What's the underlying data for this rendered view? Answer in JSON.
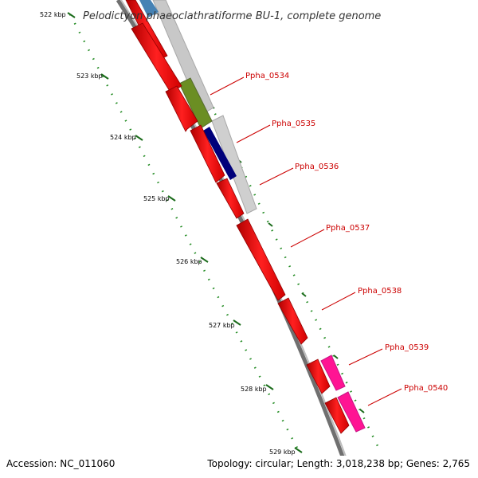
{
  "title": "Pelodictyon phaeoclathratiforme BU-1, complete genome",
  "scale_labels": [
    "522 kbp",
    "523 kbp",
    "524 kbp",
    "525 kbp",
    "526 kbp",
    "527 kbp",
    "528 kbp",
    "529 kbp"
  ],
  "genes": [
    "Ppha_0534",
    "Ppha_0535",
    "Ppha_0536",
    "Ppha_0537",
    "Ppha_0538",
    "Ppha_0539",
    "Ppha_0540"
  ],
  "footer": {
    "accession": "Accession: NC_011060",
    "topology": "Topology: circular; Length: 3,018,238 bp; Genes: 2,765"
  },
  "colors": {
    "cds": "#ff0000",
    "gene_label": "#cc0000",
    "backbone": "#808080",
    "grey_feature": "#c8c8c8",
    "olive_feature": "#6b8e23",
    "navy_feature": "#00007a",
    "blue_feature": "#4682b4",
    "magenta_feature": "#ff1493",
    "tick_dots": "#228b22"
  }
}
